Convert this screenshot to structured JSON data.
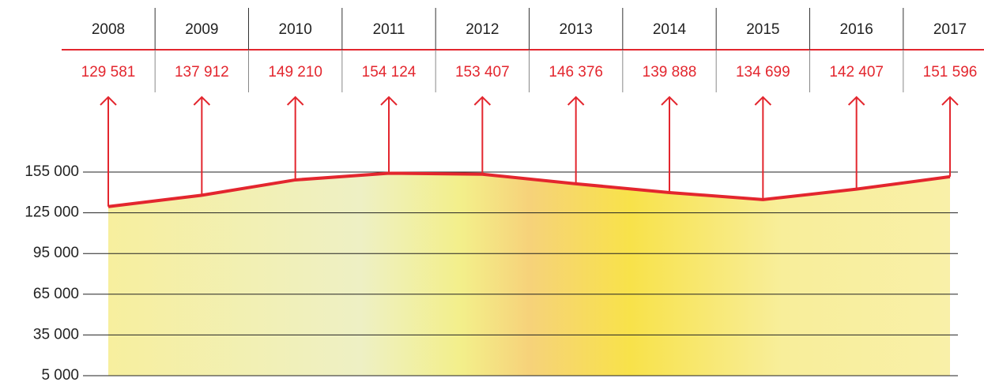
{
  "chart_data": {
    "type": "area",
    "categories": [
      "2008",
      "2009",
      "2010",
      "2011",
      "2012",
      "2013",
      "2014",
      "2015",
      "2016",
      "2017"
    ],
    "values": [
      129581,
      137912,
      149210,
      154124,
      153407,
      146376,
      139888,
      134699,
      142407,
      151596
    ],
    "value_labels": [
      "129 581",
      "137 912",
      "149 210",
      "154 124",
      "153 407",
      "146 376",
      "139 888",
      "134 699",
      "142 407",
      "151 596"
    ],
    "color": "#e3262e",
    "ylim": [
      5000,
      155000
    ],
    "yticks": [
      {
        "value": 5000,
        "label": "5 000"
      },
      {
        "value": 35000,
        "label": "35 000"
      },
      {
        "value": 65000,
        "label": "65 000"
      },
      {
        "value": 95000,
        "label": "95 000"
      },
      {
        "value": 125000,
        "label": "125 000"
      },
      {
        "value": 155000,
        "label": "155 000"
      }
    ],
    "grid": true
  }
}
